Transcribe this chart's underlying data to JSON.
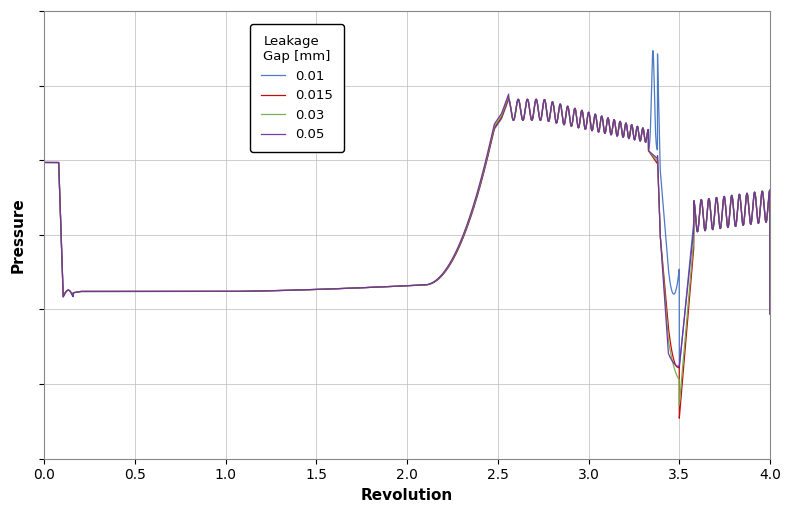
{
  "title": "",
  "xlabel": "Revolution",
  "ylabel": "Pressure",
  "xlim": [
    0.0,
    4.0
  ],
  "ylim_auto": true,
  "xticks": [
    0.0,
    0.5,
    1.0,
    1.5,
    2.0,
    2.5,
    3.0,
    3.5,
    4.0
  ],
  "legend_title": "Leakage\nGap [mm]",
  "legend_labels": [
    "0.01",
    "0.015",
    "0.03",
    "0.05"
  ],
  "line_colors": [
    "#4472C4",
    "#C00000",
    "#70AD47",
    "#7030A0"
  ],
  "background_color": "#FFFFFF",
  "figsize": [
    7.92,
    5.14
  ],
  "dpi": 100
}
